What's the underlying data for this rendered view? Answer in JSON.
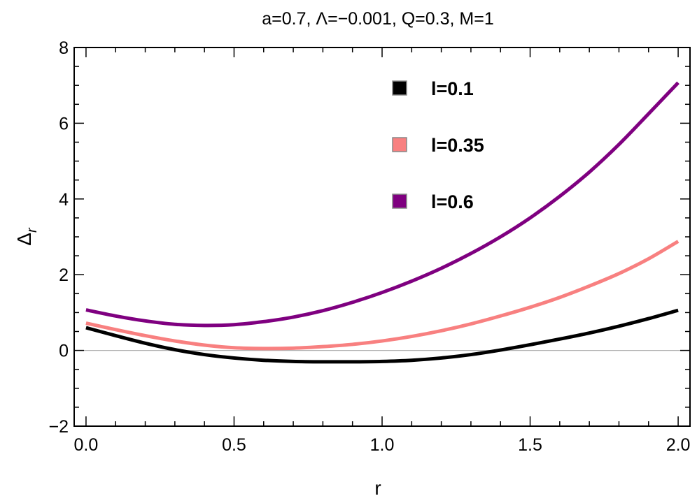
{
  "chart_data": {
    "type": "line",
    "title": "a=0.7,  Λ=−0.001, Q=0.3, M=1",
    "xlabel": "r",
    "ylabel_main": "Δ",
    "ylabel_sub": "r",
    "xlim": [
      -0.04,
      2.04
    ],
    "ylim": [
      -2,
      8
    ],
    "xticks": [
      0.0,
      0.5,
      1.0,
      1.5,
      2.0
    ],
    "xtick_labels": [
      "0.0",
      "0.5",
      "1.0",
      "1.5",
      "2.0"
    ],
    "yticks": [
      -2,
      0,
      2,
      4,
      6,
      8
    ],
    "ytick_labels": [
      "−2",
      "0",
      "2",
      "4",
      "6",
      "8"
    ],
    "grid": false,
    "zero_line": true,
    "legend_position": "top-right",
    "series": [
      {
        "name": "l=0.1",
        "color": "#000000",
        "x": [
          0.0,
          0.1,
          0.2,
          0.3,
          0.4,
          0.5,
          0.6,
          0.7,
          0.8,
          0.9,
          1.0,
          1.1,
          1.2,
          1.3,
          1.4,
          1.5,
          1.6,
          1.7,
          1.8,
          1.9,
          2.0
        ],
        "y": [
          0.6,
          0.39,
          0.19,
          0.02,
          -0.11,
          -0.2,
          -0.26,
          -0.29,
          -0.3,
          -0.3,
          -0.29,
          -0.26,
          -0.2,
          -0.11,
          0.01,
          0.15,
          0.3,
          0.46,
          0.64,
          0.84,
          1.06
        ]
      },
      {
        "name": "l=0.35",
        "color": "#f88080",
        "x": [
          0.0,
          0.1,
          0.2,
          0.3,
          0.4,
          0.5,
          0.6,
          0.7,
          0.8,
          0.9,
          1.0,
          1.1,
          1.2,
          1.3,
          1.4,
          1.5,
          1.6,
          1.7,
          1.8,
          1.9,
          2.0
        ],
        "y": [
          0.72,
          0.55,
          0.39,
          0.25,
          0.14,
          0.07,
          0.05,
          0.06,
          0.1,
          0.16,
          0.25,
          0.37,
          0.52,
          0.7,
          0.91,
          1.14,
          1.4,
          1.7,
          2.03,
          2.42,
          2.88
        ]
      },
      {
        "name": "l=0.6",
        "color": "#7f0080",
        "x": [
          0.0,
          0.1,
          0.2,
          0.3,
          0.4,
          0.5,
          0.6,
          0.7,
          0.8,
          0.9,
          1.0,
          1.1,
          1.2,
          1.3,
          1.4,
          1.5,
          1.6,
          1.7,
          1.8,
          1.9,
          2.0
        ],
        "y": [
          1.07,
          0.91,
          0.78,
          0.69,
          0.66,
          0.68,
          0.76,
          0.88,
          1.05,
          1.27,
          1.53,
          1.83,
          2.17,
          2.56,
          3.0,
          3.5,
          4.07,
          4.71,
          5.44,
          6.25,
          7.07
        ]
      }
    ]
  }
}
